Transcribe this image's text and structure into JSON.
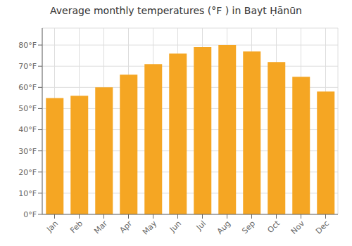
{
  "chart_data": {
    "type": "bar",
    "title": "Average monthly temperatures (°F ) in Bayt Ḥānūn",
    "categories": [
      "Jan",
      "Feb",
      "Mar",
      "Apr",
      "May",
      "Jun",
      "Jul",
      "Aug",
      "Sep",
      "Oct",
      "Nov",
      "Dec"
    ],
    "values": [
      55,
      56,
      60,
      66,
      71,
      76,
      79,
      80,
      77,
      72,
      65,
      58
    ],
    "color": "#F5A623",
    "ylim": [
      0,
      88
    ],
    "yticks": [
      {
        "value": 0,
        "label": "0°F"
      },
      {
        "value": 10,
        "label": "10°F"
      },
      {
        "value": 20,
        "label": "20°F"
      },
      {
        "value": 30,
        "label": "30°F"
      },
      {
        "value": 40,
        "label": "40°F"
      },
      {
        "value": 50,
        "label": "50°F"
      },
      {
        "value": 60,
        "label": "60°F"
      },
      {
        "value": 70,
        "label": "70°F"
      },
      {
        "value": 80,
        "label": "80°F"
      }
    ],
    "grid": true
  }
}
